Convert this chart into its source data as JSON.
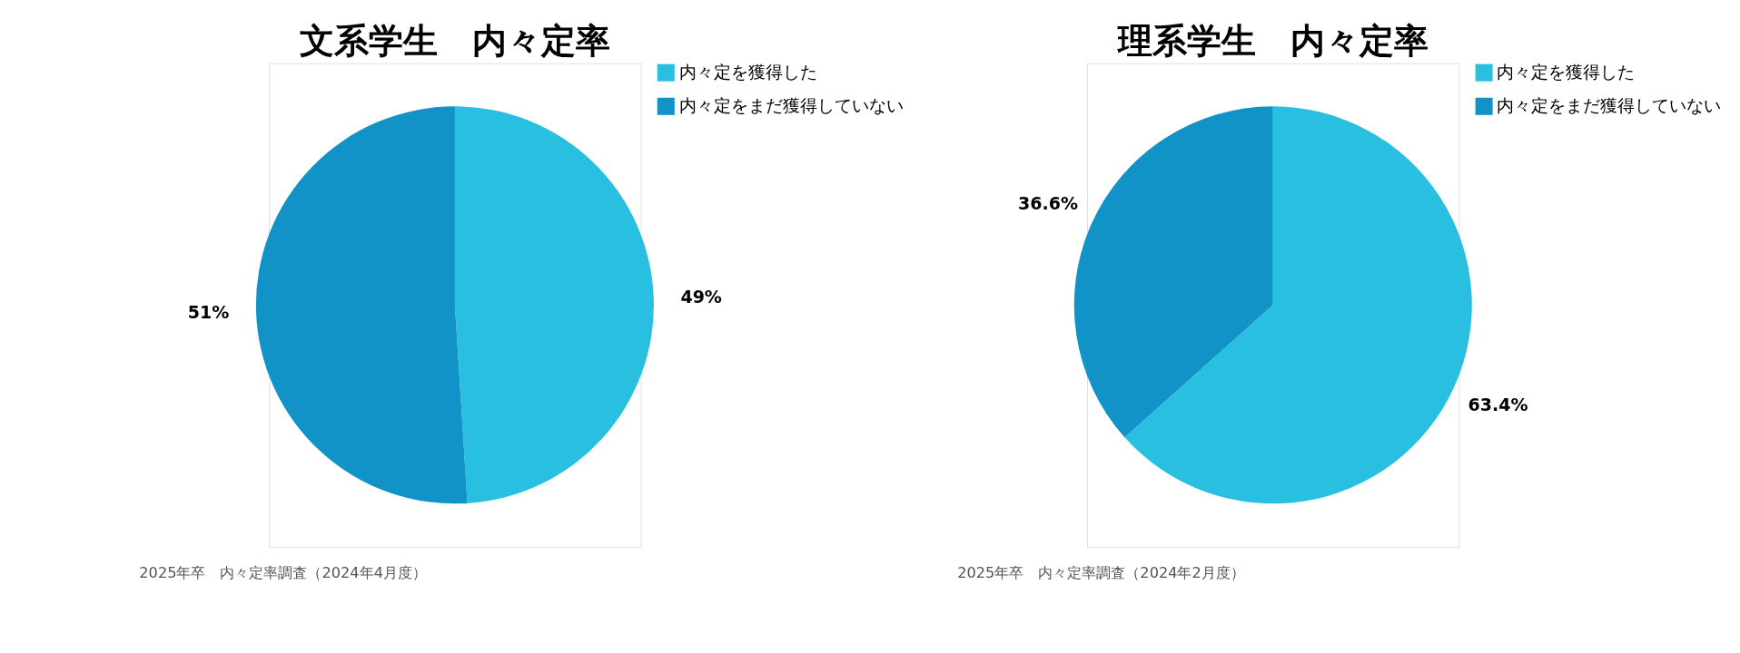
{
  "chart_data": [
    {
      "type": "pie",
      "title": "文系学生　内々定率",
      "categories": [
        "内々定を獲得した",
        "内々定をまだ獲得していない"
      ],
      "values": [
        49,
        51
      ],
      "colors": [
        "#29bfe0",
        "#1193c8"
      ],
      "value_labels": [
        "49%",
        "51%"
      ],
      "legend": "right",
      "annotations": [
        "2025年卒　内々定率調査（2024年4月度）"
      ]
    },
    {
      "type": "pie",
      "title": "理系学生　内々定率",
      "categories": [
        "内々定を獲得した",
        "内々定をまだ獲得していない"
      ],
      "values": [
        63.4,
        36.6
      ],
      "colors": [
        "#29bfe0",
        "#1193c8"
      ],
      "value_labels": [
        "63.4%",
        "36.6%"
      ],
      "legend": "right",
      "annotations": [
        "2025年卒　内々定率調査（2024年2月度）"
      ]
    }
  ]
}
